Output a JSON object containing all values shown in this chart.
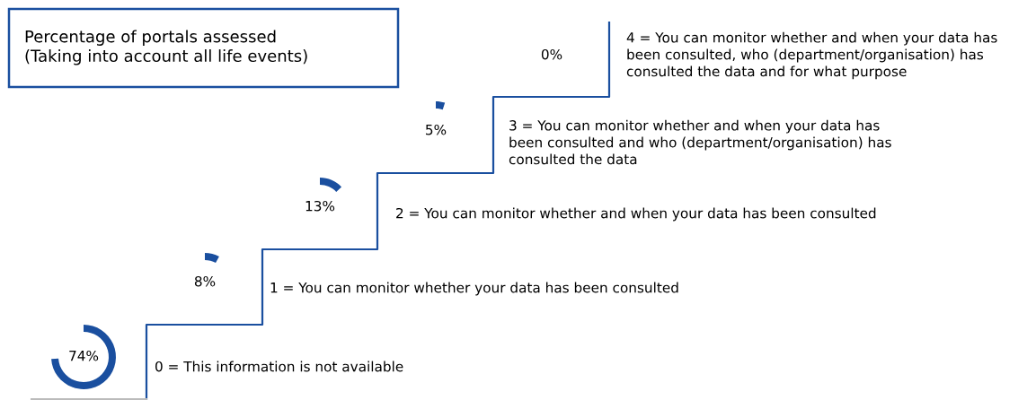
{
  "chart_data": {
    "type": "other",
    "title": "Percentage of portals assessed\n(Taking into account all life events)",
    "categories": [
      "0 = This information is not available",
      "1 = You can monitor whether your data has been consulted",
      "2 = You can monitor whether and when your data has been consulted",
      "3 = You can monitor whether and when your data has\nbeen consulted and who (department/organisation) has\nconsulted the data",
      "4 = You can monitor whether and when your data has\nbeen consulted, who (department/organisation) has\nconsulted the data and for what purpose"
    ],
    "values": [
      74,
      8,
      13,
      5,
      0
    ],
    "value_labels": [
      "74%",
      "8%",
      "13%",
      "5%",
      "0%"
    ],
    "colors": [
      "#1a4f9f",
      "#1a4f9f",
      "#1a4f9f",
      "#1a4f9f",
      "#1a4f9f"
    ]
  }
}
